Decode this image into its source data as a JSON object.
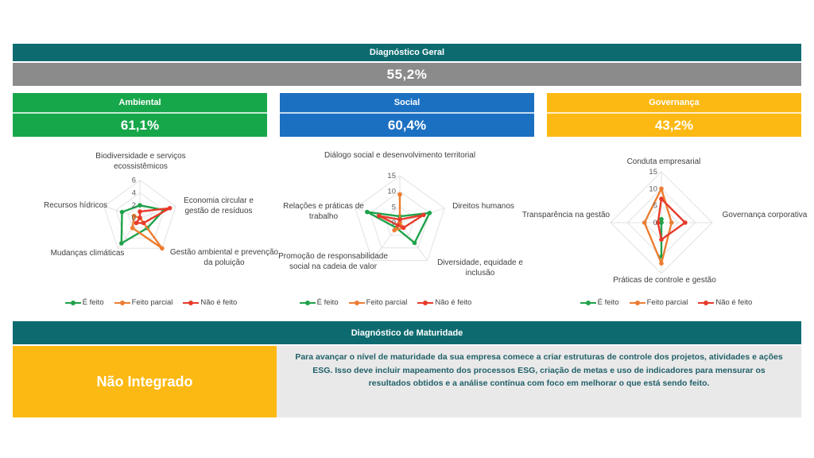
{
  "general": {
    "title": "Diagnóstico Geral",
    "value": "55,2%",
    "header_color": "#0d6b70",
    "value_bg": "#8b8b8b"
  },
  "categories": [
    {
      "label": "Ambiental",
      "value": "61,1%",
      "color": "#17a74b"
    },
    {
      "label": "Social",
      "value": "60,4%",
      "color": "#1b70c2"
    },
    {
      "label": "Governança",
      "value": "43,2%",
      "color": "#fdb913"
    }
  ],
  "chart_data": [
    {
      "type": "radar",
      "title": "Ambiental",
      "axes": [
        "Biodiversidade e serviços ecossistêmicos",
        "Economia circular e gestão de resíduos",
        "Gestão ambiental e prevenção da poluição",
        "Mudanças climáticas",
        "Recursos hídricos"
      ],
      "max": 6,
      "ticks": [
        0,
        2,
        4,
        6
      ],
      "grid": true,
      "legend_position": "bottom",
      "series": [
        {
          "name": "É feito",
          "color": "#1fa24a",
          "values": [
            2,
            4,
            2,
            5,
            3
          ]
        },
        {
          "name": "Feito parcial",
          "color": "#ec7d31",
          "values": [
            0,
            0,
            6,
            2,
            1
          ]
        },
        {
          "name": "Não é feito",
          "color": "#e73a2a",
          "values": [
            1,
            5,
            1,
            1,
            0
          ]
        }
      ]
    },
    {
      "type": "radar",
      "title": "Social",
      "axes": [
        "Diálogo social e desenvolvimento territorial",
        "Direitos humanos",
        "Diversidade, equidade e inclusão",
        "Promoção de responsabilidade social na cadeia de valor",
        "Relações e práticas de trabalho"
      ],
      "max": 15,
      "ticks": [
        0,
        5,
        10,
        15
      ],
      "grid": true,
      "legend_position": "bottom",
      "series": [
        {
          "name": "É feito",
          "color": "#1fa24a",
          "values": [
            2,
            10,
            8,
            2,
            11
          ]
        },
        {
          "name": "Feito parcial",
          "color": "#ec7d31",
          "values": [
            9,
            0,
            2,
            3,
            0
          ]
        },
        {
          "name": "Não é feito",
          "color": "#e73a2a",
          "values": [
            1,
            8,
            2,
            1,
            7
          ]
        }
      ]
    },
    {
      "type": "radar",
      "title": "Governança",
      "axes": [
        "Conduta empresarial",
        "Governança corporativa",
        "Práticas de controle e gestão",
        "Transparência na gestão"
      ],
      "max": 15,
      "ticks": [
        0,
        5,
        10,
        15
      ],
      "grid": true,
      "legend_position": "bottom",
      "series": [
        {
          "name": "É feito",
          "color": "#1fa24a",
          "values": [
            1,
            0,
            10,
            0
          ]
        },
        {
          "name": "Feito parcial",
          "color": "#ec7d31",
          "values": [
            10,
            3,
            12,
            5
          ]
        },
        {
          "name": "Não é feito",
          "color": "#e73a2a",
          "values": [
            7,
            7,
            5,
            1
          ]
        }
      ]
    }
  ],
  "maturity": {
    "title": "Diagnóstico de Maturidade",
    "header_color": "#0d6b70",
    "level": "Não Integrado",
    "level_bg": "#fdb913",
    "description": "Para avançar o nível de maturidade da sua empresa comece a criar estruturas de controle dos projetos, atividades e ações ESG. Isso deve incluir mapeamento dos processos ESG, criação de metas e uso de indicadores para mensurar os resultados obtidos e a análise contínua com foco em melhorar o que está sendo feito."
  }
}
